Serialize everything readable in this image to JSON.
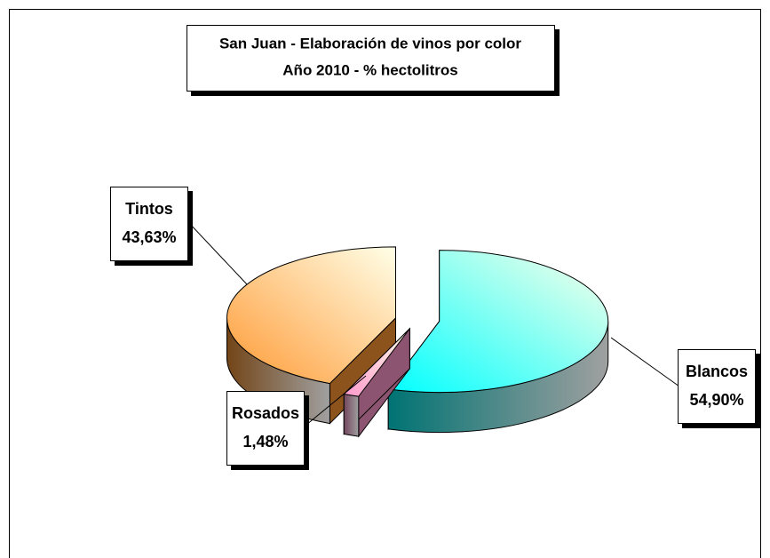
{
  "chart_data": {
    "type": "pie",
    "title": "San Juan - Elaboración de vinos por color",
    "subtitle": "Año 2010 - % hectolitros",
    "categories": [
      "Blancos",
      "Rosados",
      "Tintos"
    ],
    "values": [
      54.9,
      1.48,
      43.63
    ],
    "value_labels": [
      "54,90%",
      "1,48%",
      "43,63%"
    ],
    "colors": [
      "#00ffff",
      "#ff99cc",
      "#ff9933"
    ]
  }
}
